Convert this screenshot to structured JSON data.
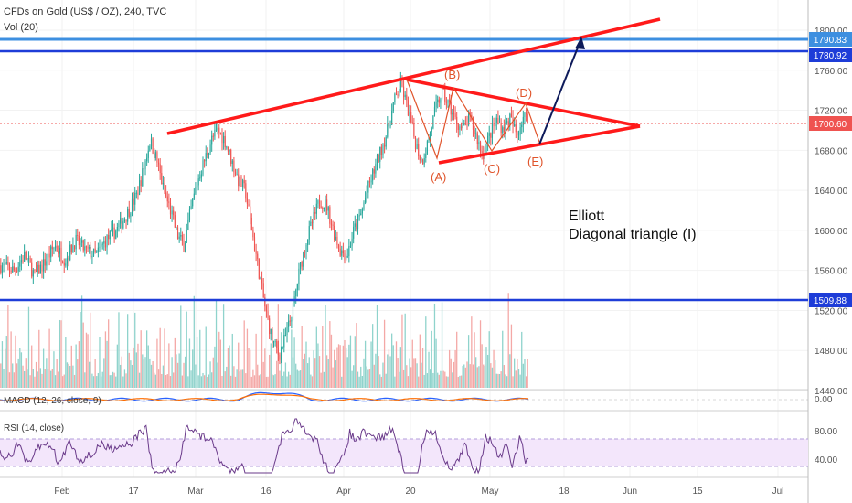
{
  "header": {
    "title": "CFDs on Gold (US$ / OZ), 240, TVC",
    "volume_label": "Vol (20)"
  },
  "panels": {
    "macd_label": "MACD (12, 26, close, 9)",
    "rsi_label": "RSI (14, close)"
  },
  "annotation": {
    "line1": "Elliott",
    "line2": "Diagonal triangle (I)"
  },
  "wave_labels": [
    "(A)",
    "(B)",
    "(C)",
    "(D)",
    "(E)"
  ],
  "colors": {
    "up": "#26a69a",
    "down": "#ef5350",
    "volume_up": "#8fd3cc",
    "volume_down": "#f4a8a6",
    "triangle": "#ff1a1a",
    "wave": "#e0542b",
    "blue_line": "#1e3dd8",
    "light_blue_line": "#3d8fe0",
    "last_price": "#ef5350",
    "rsi": "#6a3a8a",
    "rsi_band": "#f3e6fb",
    "macd": "#2962ff",
    "signal": "#ff6d00",
    "arrow": "#0d1a5a"
  },
  "chart_data": {
    "type": "candlestick",
    "symbol": "CFDs on Gold (US$ / OZ)",
    "interval": "240",
    "x_tick_labels": [
      "Feb",
      "17",
      "Mar",
      "16",
      "Apr",
      "20",
      "May",
      "18",
      "Jun",
      "15",
      "Jul"
    ],
    "y_ticks": [
      1440,
      1480,
      1520,
      1560,
      1600,
      1640,
      1680,
      1720,
      1760,
      1800
    ],
    "y_range": [
      1410,
      1825
    ],
    "price_path": [
      [
        0,
        1565
      ],
      [
        4,
        1560
      ],
      [
        7,
        1575
      ],
      [
        10,
        1555
      ],
      [
        13,
        1568
      ],
      [
        16,
        1585
      ],
      [
        19,
        1570
      ],
      [
        22,
        1590
      ],
      [
        25,
        1580
      ],
      [
        28,
        1575
      ],
      [
        31,
        1590
      ],
      [
        34,
        1600
      ],
      [
        37,
        1615
      ],
      [
        40,
        1635
      ],
      [
        42,
        1660
      ],
      [
        44,
        1690
      ],
      [
        46,
        1670
      ],
      [
        48,
        1640
      ],
      [
        50,
        1620
      ],
      [
        52,
        1595
      ],
      [
        54,
        1585
      ],
      [
        56,
        1620
      ],
      [
        58,
        1650
      ],
      [
        60,
        1670
      ],
      [
        62,
        1690
      ],
      [
        64,
        1700
      ],
      [
        66,
        1690
      ],
      [
        68,
        1670
      ],
      [
        70,
        1650
      ],
      [
        72,
        1640
      ],
      [
        74,
        1600
      ],
      [
        76,
        1560
      ],
      [
        78,
        1520
      ],
      [
        80,
        1490
      ],
      [
        82,
        1475
      ],
      [
        84,
        1495
      ],
      [
        86,
        1520
      ],
      [
        88,
        1560
      ],
      [
        90,
        1590
      ],
      [
        92,
        1610
      ],
      [
        94,
        1630
      ],
      [
        96,
        1625
      ],
      [
        98,
        1600
      ],
      [
        100,
        1580
      ],
      [
        102,
        1575
      ],
      [
        104,
        1600
      ],
      [
        106,
        1615
      ],
      [
        108,
        1640
      ],
      [
        110,
        1660
      ],
      [
        112,
        1680
      ],
      [
        114,
        1700
      ],
      [
        116,
        1730
      ],
      [
        118,
        1745
      ],
      [
        120,
        1720
      ],
      [
        122,
        1690
      ],
      [
        124,
        1668
      ],
      [
        126,
        1690
      ],
      [
        128,
        1720
      ],
      [
        130,
        1738
      ],
      [
        132,
        1725
      ],
      [
        134,
        1710
      ],
      [
        136,
        1700
      ],
      [
        138,
        1712
      ],
      [
        140,
        1695
      ],
      [
        142,
        1675
      ],
      [
        144,
        1695
      ],
      [
        146,
        1710
      ],
      [
        148,
        1702
      ],
      [
        150,
        1712
      ],
      [
        152,
        1695
      ],
      [
        154,
        1715
      ],
      [
        156,
        1705
      ]
    ],
    "volume": [],
    "macd": {
      "zero": 0,
      "ticks": [
        0.0
      ]
    },
    "rsi": {
      "ticks": [
        40.0,
        80.0
      ],
      "band": [
        30,
        70
      ]
    },
    "horizontal_levels": [
      {
        "price": 1790.83,
        "label": "1790.83",
        "style": "light-blue"
      },
      {
        "price": 1780.92,
        "label": "1780.92",
        "style": "blue"
      },
      {
        "price": 1700.6,
        "label": "1700.60",
        "style": "last-price"
      },
      {
        "price": 1509.88,
        "label": "1509.88",
        "style": "blue"
      }
    ],
    "patterns": [
      "Elliott diagonal triangle"
    ]
  }
}
